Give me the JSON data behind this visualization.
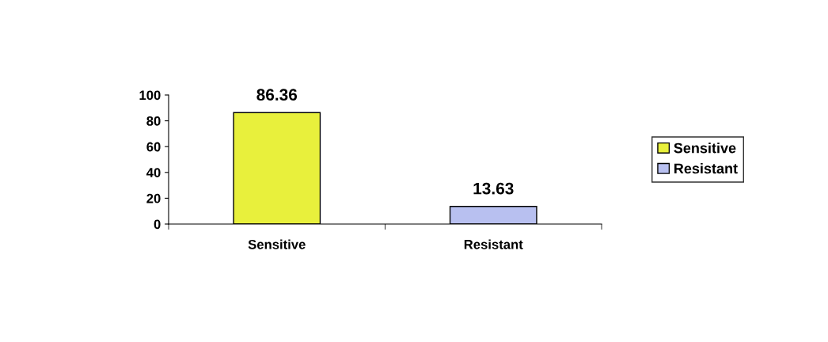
{
  "chart_data": {
    "type": "bar",
    "categories": [
      "Sensitive",
      "Resistant"
    ],
    "series": [
      {
        "name": "Sensitive",
        "color": "#e8f03c",
        "values": [
          86.36,
          null
        ]
      },
      {
        "name": "Resistant",
        "color": "#b8c0f0",
        "values": [
          null,
          13.63
        ]
      }
    ],
    "ylim": [
      0,
      100
    ],
    "yticks": [
      0,
      20,
      40,
      60,
      80,
      100
    ],
    "data_labels": true,
    "legend": "right"
  }
}
